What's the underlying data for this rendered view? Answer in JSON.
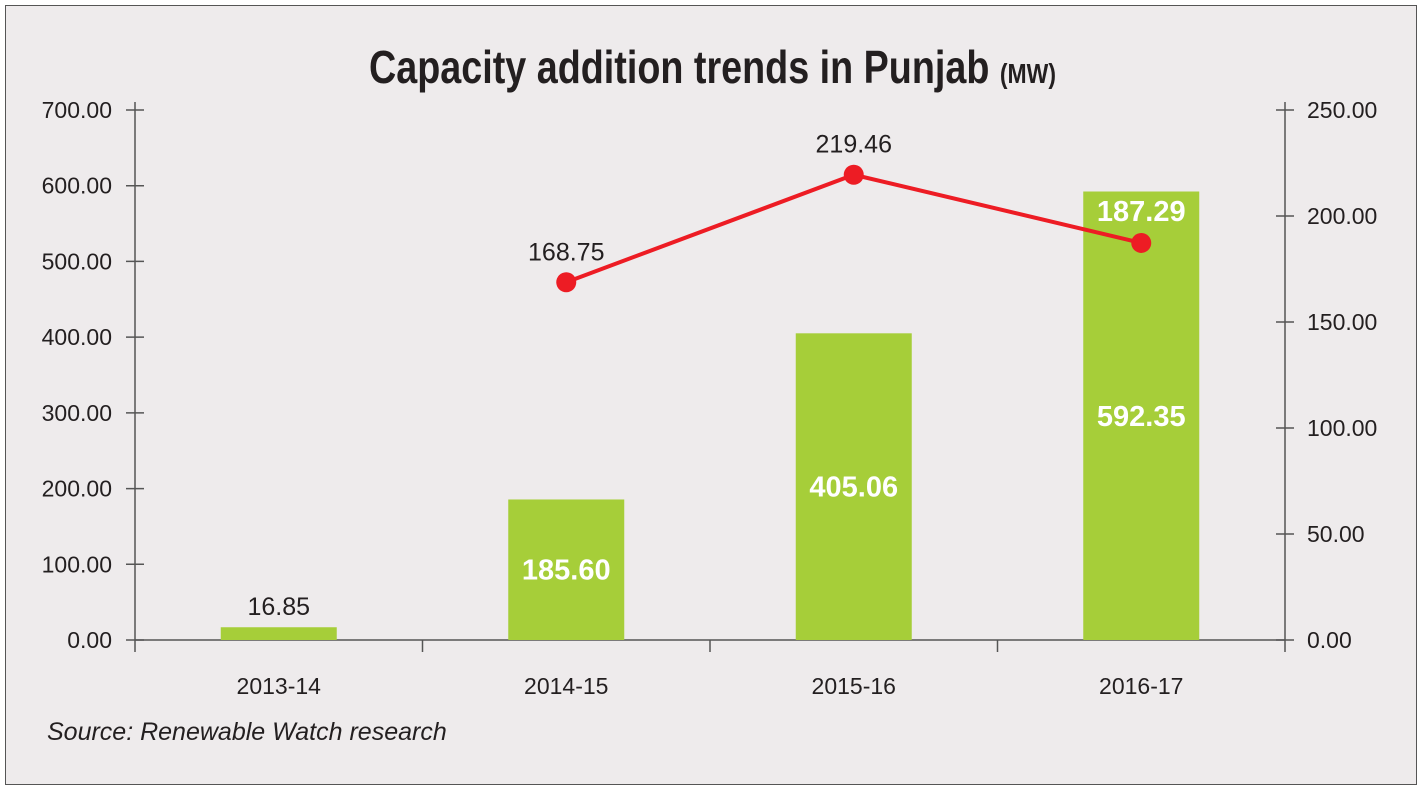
{
  "chart_data": {
    "type": "bar+line",
    "title": "Capacity addition trends in Punjab",
    "title_unit": "(MW)",
    "source": "Source: Renewable Watch research",
    "categories": [
      "2013-14",
      "2014-15",
      "2015-16",
      "2016-17"
    ],
    "series": [
      {
        "type": "bar",
        "axis": "left",
        "values": [
          16.85,
          185.6,
          405.06,
          592.35
        ],
        "color": "#a6ce39"
      },
      {
        "type": "line",
        "axis": "right",
        "values": [
          null,
          168.75,
          219.46,
          187.29
        ],
        "color": "#ed1c24"
      }
    ],
    "left_axis": {
      "ylim": [
        0,
        700
      ],
      "ticks": [
        "0.00",
        "100.00",
        "200.00",
        "300.00",
        "400.00",
        "500.00",
        "600.00",
        "700.00"
      ]
    },
    "right_axis": {
      "ylim": [
        0,
        250
      ],
      "ticks": [
        "0.00",
        "50.00",
        "100.00",
        "150.00",
        "200.00",
        "250.00"
      ]
    },
    "grid": false,
    "legend": "none"
  }
}
